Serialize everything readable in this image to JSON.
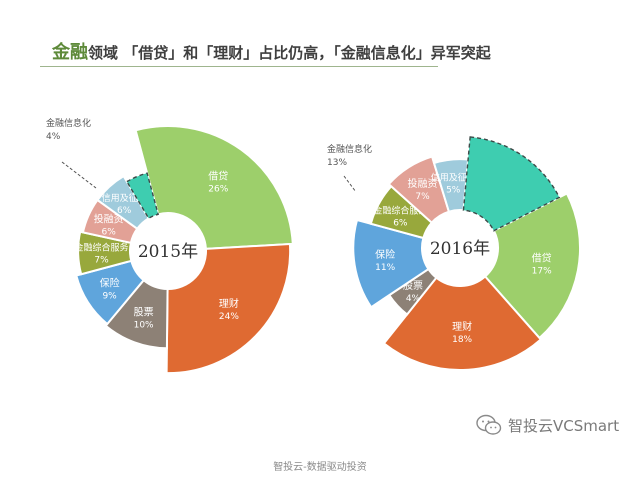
{
  "header": {
    "title_accent": "金融",
    "title_rest": "领域 「借贷」和「理财」占比仍高，「金融信息化」异军突起"
  },
  "footer": {
    "text": "智投云-数据驱动投资"
  },
  "brand": {
    "text": "智投云VCSmart",
    "icon": "wechat-icon"
  },
  "colors": {
    "借贷": "#9dcf6b",
    "理财": "#df6a32",
    "股票": "#8d8176",
    "保险": "#5fa5dc",
    "金融综合服务": "#98a83c",
    "投融资": "#e2a196",
    "信用及征信": "#9fcbdc",
    "金融信息化": "#3ecdb0"
  },
  "chart_data": [
    {
      "type": "pie",
      "center_label": "2015年",
      "slices": [
        {
          "name": "借贷",
          "label": "借贷",
          "pct_label": "26%",
          "value": 26
        },
        {
          "name": "理财",
          "label": "理财",
          "pct_label": "24%",
          "value": 24
        },
        {
          "name": "股票",
          "label": "股票",
          "pct_label": "10%",
          "value": 10
        },
        {
          "name": "保险",
          "label": "保险",
          "pct_label": "9%",
          "value": 9
        },
        {
          "name": "金融综合服务",
          "label": "金融综合服务",
          "pct_label": "7%",
          "value": 7
        },
        {
          "name": "投融资",
          "label": "投融资",
          "pct_label": "6%",
          "value": 6
        },
        {
          "name": "信用及征信",
          "label": "信用及征信",
          "pct_label": "6%",
          "value": 6
        },
        {
          "name": "金融信息化",
          "label": "金融信息化",
          "pct_label": "4%",
          "value": 4,
          "exploded": true
        }
      ]
    },
    {
      "type": "pie",
      "center_label": "2016年",
      "slices": [
        {
          "name": "借贷",
          "label": "借贷",
          "pct_label": "17%",
          "value": 17
        },
        {
          "name": "理财",
          "label": "理财",
          "pct_label": "18%",
          "value": 18
        },
        {
          "name": "股票",
          "label": "股票",
          "pct_label": "4%",
          "value": 4
        },
        {
          "name": "保险",
          "label": "保险",
          "pct_label": "11%",
          "value": 11
        },
        {
          "name": "金融综合服务",
          "label": "金融综合服务",
          "pct_label": "6%",
          "value": 6
        },
        {
          "name": "投融资",
          "label": "投融资",
          "pct_label": "7%",
          "value": 7
        },
        {
          "name": "信用及征信",
          "label": "信用及征信",
          "pct_label": "5%",
          "value": 5
        },
        {
          "name": "金融信息化",
          "label": "金融信息化",
          "pct_label": "13%",
          "value": 13,
          "exploded": true
        }
      ]
    }
  ]
}
